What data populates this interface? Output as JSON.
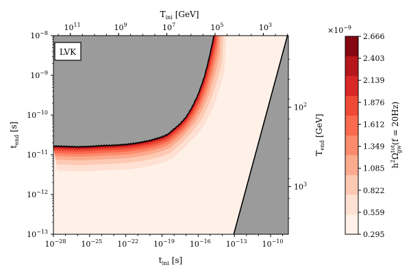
{
  "chart_data": {
    "type": "heatmap",
    "annotation": "LVK",
    "xlabel_bottom": "t_ini [s]",
    "xlabel_top": "T_ini [GeV]",
    "ylabel_left": "t_end [s]",
    "ylabel_right": "T_end [GeV]",
    "x_scale": "log",
    "y_scale": "log",
    "xlim": [
      "1e-28",
      "3e-9"
    ],
    "ylim": [
      "1e-13",
      "1e-8"
    ],
    "x_ticks": [
      {
        "label": "10",
        "exp": "−28",
        "value": -28
      },
      {
        "label": "10",
        "exp": "−25",
        "value": -25
      },
      {
        "label": "10",
        "exp": "−22",
        "value": -22
      },
      {
        "label": "10",
        "exp": "−19",
        "value": -19
      },
      {
        "label": "10",
        "exp": "−16",
        "value": -16
      },
      {
        "label": "10",
        "exp": "−13",
        "value": -13
      },
      {
        "label": "10",
        "exp": "−10",
        "value": -10
      }
    ],
    "y_ticks": [
      {
        "label": "10",
        "exp": "−13",
        "value": -13
      },
      {
        "label": "10",
        "exp": "−12",
        "value": -12
      },
      {
        "label": "10",
        "exp": "−11",
        "value": -11
      },
      {
        "label": "10",
        "exp": "−10",
        "value": -10
      },
      {
        "label": "10",
        "exp": "−9",
        "value": -9
      },
      {
        "label": "10",
        "exp": "−8",
        "value": -8
      }
    ],
    "top_ticks": [
      {
        "label": "10",
        "exp": "11",
        "value": -26.6
      },
      {
        "label": "10",
        "exp": "9",
        "value": -22.6
      },
      {
        "label": "10",
        "exp": "7",
        "value": -18.6
      },
      {
        "label": "10",
        "exp": "5",
        "value": -14.6
      },
      {
        "label": "10",
        "exp": "3",
        "value": -10.6
      }
    ],
    "right_ticks": [
      {
        "label": "10",
        "exp": "2",
        "value": -9.8
      },
      {
        "label": "10",
        "exp": "3",
        "value": -11.8
      }
    ],
    "colorbar": {
      "title": "h²Ω_gw^tot(f = 20Hz)",
      "multiplier": "×10",
      "multiplier_exp": "−9",
      "levels": [
        "0.295",
        "0.559",
        "0.822",
        "1.085",
        "1.349",
        "1.612",
        "1.876",
        "2.139",
        "2.403",
        "2.666"
      ],
      "colors": [
        "#fff0e8",
        "#fee1d2",
        "#fdc9b2",
        "#fcab8f",
        "#fc8b6c",
        "#f96a4f",
        "#ef4a36",
        "#d92927",
        "#b6161c",
        "#840711"
      ]
    },
    "excluded_color": "#9b9b9b",
    "boundary_upper": [
      {
        "x": -28,
        "y": -10.78
      },
      {
        "x": -27,
        "y": -10.79
      },
      {
        "x": -26,
        "y": -10.8
      },
      {
        "x": -25,
        "y": -10.79
      },
      {
        "x": -24,
        "y": -10.77
      },
      {
        "x": -23,
        "y": -10.76
      },
      {
        "x": -22,
        "y": -10.74
      },
      {
        "x": -21,
        "y": -10.7
      },
      {
        "x": -20,
        "y": -10.64
      },
      {
        "x": -19,
        "y": -10.55
      },
      {
        "x": -18.5,
        "y": -10.48
      },
      {
        "x": -18,
        "y": -10.35
      },
      {
        "x": -17.5,
        "y": -10.22
      },
      {
        "x": -17,
        "y": -10.05
      },
      {
        "x": -16.5,
        "y": -9.8
      },
      {
        "x": -16,
        "y": -9.48
      },
      {
        "x": -15.5,
        "y": -9.05
      },
      {
        "x": -15.2,
        "y": -8.7
      },
      {
        "x": -14.9,
        "y": -8.3
      },
      {
        "x": -14.7,
        "y": -8.0
      }
    ],
    "boundary_lower": [
      {
        "x": -13.05,
        "y": -13.0
      },
      {
        "x": -8.6,
        "y": -8.0
      }
    ]
  }
}
